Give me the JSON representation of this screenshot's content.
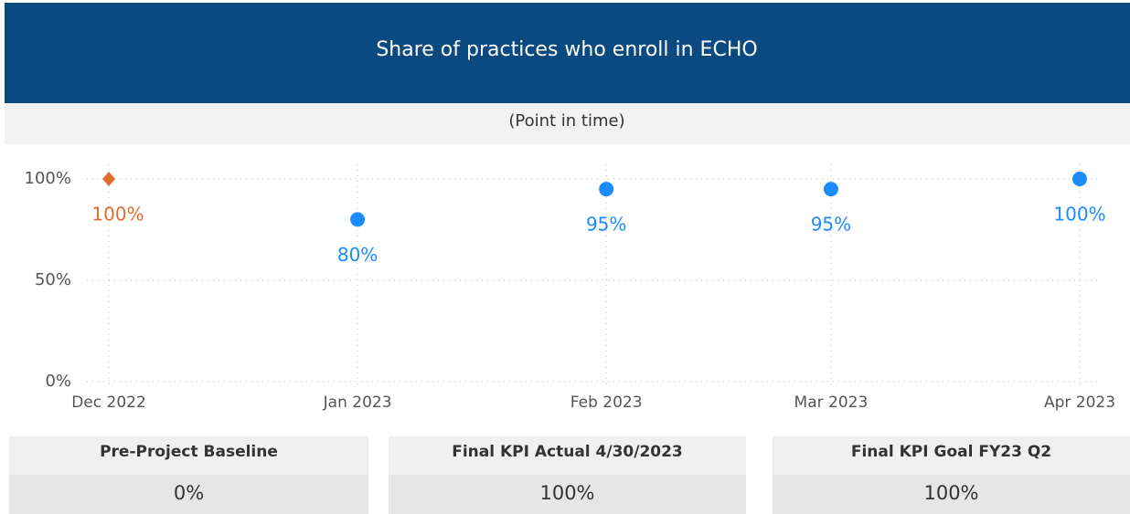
{
  "chart_data": {
    "type": "scatter",
    "title": "Share of practices who enroll in ECHO",
    "subtitle": "(Point in time)",
    "x": [
      "Dec 2022",
      "Jan 2023",
      "Feb 2023",
      "Mar 2023",
      "Apr 2023"
    ],
    "series": [
      {
        "color": "#e06c2e",
        "marker": "diamond",
        "values": [
          100,
          null,
          null,
          null,
          null
        ],
        "value_labels": [
          "100%",
          null,
          null,
          null,
          null
        ]
      },
      {
        "color": "#1a8cff",
        "marker": "circle",
        "values": [
          null,
          80,
          95,
          95,
          100
        ],
        "value_labels": [
          null,
          "80%",
          "95%",
          "95%",
          "100%"
        ]
      }
    ],
    "ylim": [
      0,
      100
    ],
    "yticks": [
      {
        "value": 0,
        "label": "0%"
      },
      {
        "value": 50,
        "label": "50%"
      },
      {
        "value": 100,
        "label": "100%"
      }
    ],
    "grid": true
  },
  "cards": [
    {
      "title": "Pre-Project Baseline",
      "value": "0%"
    },
    {
      "title": "Final KPI Actual 4/30/2023",
      "value": "100%"
    },
    {
      "title": "Final KPI Goal FY23 Q2",
      "value": "100%"
    }
  ]
}
